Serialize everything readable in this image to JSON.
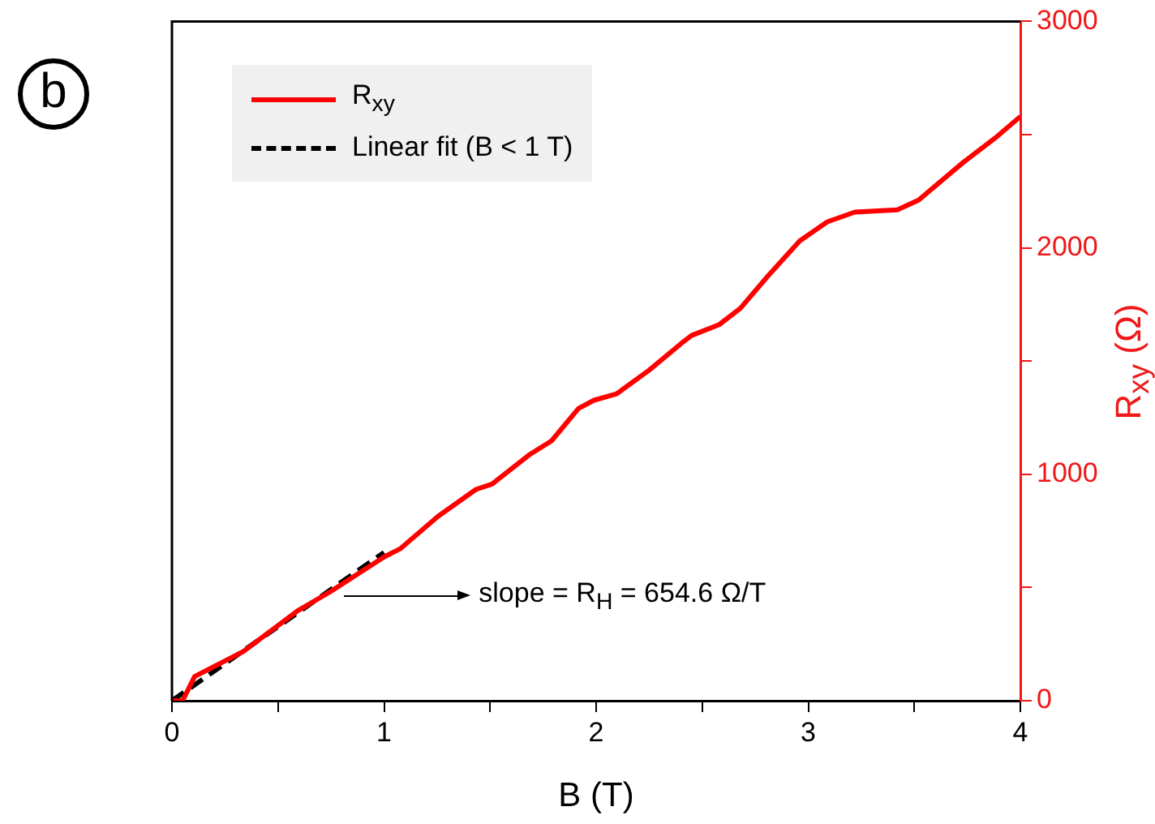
{
  "chart_data": {
    "type": "line",
    "xlabel": "B (T)",
    "y2label": "R$_{xy}$ (Ω)",
    "xlim": [
      0,
      4
    ],
    "xticks": [
      0,
      {
        "value": 0.5,
        "label": null
      },
      1,
      {
        "value": 1.5,
        "label": null
      },
      2,
      {
        "value": 2.5,
        "label": null
      },
      3,
      {
        "value": 3.5,
        "label": null
      },
      4
    ],
    "y2lim": [
      0,
      3000
    ],
    "y2ticks": [
      0,
      {
        "value": 500,
        "label": null
      },
      1000,
      {
        "value": 1500,
        "label": null
      },
      2000,
      {
        "value": 2500,
        "label": null
      },
      3000
    ],
    "legend": "top left",
    "grid": false,
    "marker": "none",
    "annotations": [
      "b",
      "slope = R$_{H}$ = 654.6 Ω/T"
    ],
    "series": [
      {
        "name": "R$_{xy}$",
        "color": "#ff0000",
        "axis": "y2",
        "line_style": "solid",
        "x": [
          0,
          0.05,
          0.107,
          0.336,
          0.591,
          0.744,
          1.0,
          1.076,
          1.254,
          1.433,
          1.509,
          1.688,
          1.79,
          1.917,
          1.99,
          2.096,
          2.25,
          2.4,
          2.45,
          2.58,
          2.68,
          2.81,
          2.96,
          3.09,
          3.22,
          3.42,
          3.52,
          3.73,
          3.88,
          4.0
        ],
        "values": [
          0,
          0,
          107,
          217,
          396,
          480,
          635,
          671,
          814,
          933,
          957,
          1088,
          1148,
          1291,
          1327,
          1355,
          1460,
          1577,
          1613,
          1661,
          1733,
          1876,
          2031,
          2115,
          2158,
          2168,
          2211,
          2377,
          2484,
          2580
        ]
      },
      {
        "name": "Linear fit (B < 1 T)",
        "color": "#000000",
        "axis": "y2",
        "line_style": "dashed",
        "x": [
          0,
          1
        ],
        "values": [
          0,
          655
        ]
      }
    ]
  }
}
